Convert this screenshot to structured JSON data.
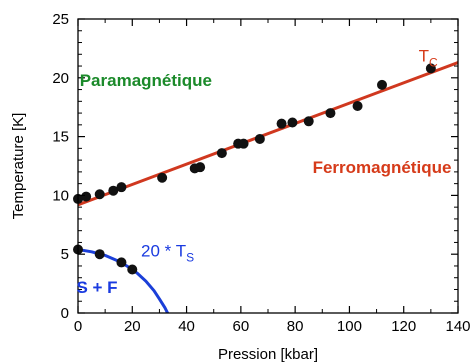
{
  "chart_data": {
    "type": "scatter",
    "title": "",
    "xlabel": "Pression [kbar]",
    "ylabel": "Temperature [K]",
    "xlim": [
      0,
      140
    ],
    "ylim": [
      0,
      25
    ],
    "x_ticks": [
      0,
      20,
      40,
      60,
      80,
      100,
      120,
      140
    ],
    "y_ticks": [
      0,
      5,
      10,
      15,
      20,
      25
    ],
    "grid": false,
    "series": [
      {
        "name": "T_C",
        "kind": "points",
        "x": [
          0,
          3,
          8,
          13,
          16,
          31,
          43,
          45,
          53,
          59,
          61,
          67,
          75,
          79,
          85,
          93,
          103,
          112,
          130
        ],
        "y": [
          9.7,
          9.9,
          10.1,
          10.4,
          10.7,
          11.5,
          12.3,
          12.4,
          13.6,
          14.4,
          14.4,
          14.8,
          16.1,
          16.2,
          16.3,
          17.0,
          17.6,
          19.4,
          20.8
        ]
      },
      {
        "name": "T_C fit",
        "kind": "line",
        "x": [
          0,
          140
        ],
        "y": [
          9.2,
          21.3
        ]
      },
      {
        "name": "20 * T_S",
        "kind": "points",
        "x": [
          0,
          8,
          16,
          20
        ],
        "y": [
          5.4,
          5.0,
          4.3,
          3.7
        ]
      },
      {
        "name": "20 * T_S curve",
        "kind": "line",
        "x": [
          0,
          5,
          10,
          15,
          18,
          20,
          22,
          25,
          28,
          30,
          32,
          33
        ],
        "y": [
          5.4,
          5.2,
          4.9,
          4.4,
          4.0,
          3.7,
          3.35,
          2.7,
          1.9,
          1.2,
          0.45,
          0
        ]
      }
    ],
    "annotations": [
      {
        "text": "Paramagnétique",
        "x": 25,
        "y": 19.3,
        "color": "#1b8a2a"
      },
      {
        "text": "Ferromagnétique",
        "x": 112,
        "y": 11.9,
        "color": "#d63b1a"
      },
      {
        "text": "20 * T",
        "sub": "S",
        "x": 33,
        "y": 4.8,
        "color": "#1a3be0"
      },
      {
        "text": "S + F",
        "x": 7,
        "y": 1.7,
        "color": "#1a3be0"
      },
      {
        "text": "T",
        "sub": "C",
        "x": 129,
        "y": 21.4,
        "color": "#d63b1a"
      }
    ],
    "colors": {
      "tc_line": "#d0381f",
      "ts_line": "#1b3fd8",
      "points": "#111111",
      "axis": "#000000"
    }
  }
}
